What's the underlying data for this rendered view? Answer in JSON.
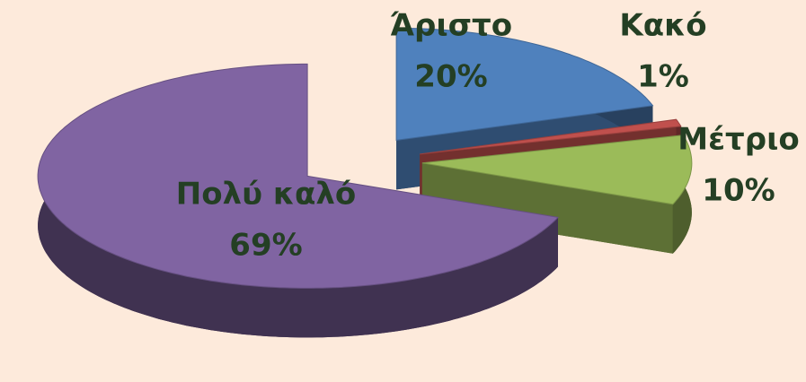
{
  "chart_data": {
    "type": "pie",
    "categories": [
      "Άριστο",
      "Κακό",
      "Μέτριο",
      "Πολύ καλό"
    ],
    "values": [
      20,
      1,
      10,
      69
    ],
    "value_labels": [
      "20%",
      "1%",
      "10%",
      "69%"
    ],
    "colors": [
      "#4f81bd",
      "#c0504d",
      "#9bbb59",
      "#8064a2"
    ]
  }
}
